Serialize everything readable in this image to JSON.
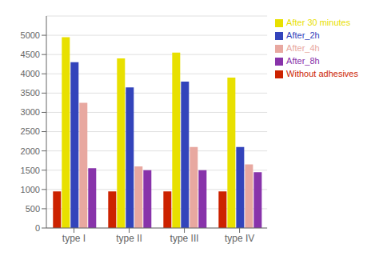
{
  "chart_data": {
    "type": "bar",
    "categories": [
      "type I",
      "type II",
      "type III",
      "type IV"
    ],
    "series": [
      {
        "name": "Without adhesives",
        "color": "#cc2200",
        "values": [
          950,
          950,
          950,
          950
        ]
      },
      {
        "name": "After 30 minutes",
        "color": "#e8e000",
        "values": [
          4950,
          4400,
          4550,
          3900
        ]
      },
      {
        "name": "After_2h",
        "color": "#3344bb",
        "values": [
          4300,
          3650,
          3800,
          2100
        ]
      },
      {
        "name": "After_4h",
        "color": "#e8a8a0",
        "values": [
          3250,
          1600,
          2100,
          1650
        ]
      },
      {
        "name": "After_8h",
        "color": "#8833aa",
        "values": [
          1550,
          1500,
          1500,
          1450
        ]
      }
    ],
    "ylim": [
      0,
      5500
    ],
    "yticks": [
      0,
      500,
      1000,
      1500,
      2000,
      2500,
      3000,
      3500,
      4000,
      4500,
      5000
    ],
    "grid": true,
    "legend": "upper right"
  }
}
